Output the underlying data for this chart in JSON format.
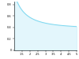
{
  "x_min": 1.0,
  "x_max": 5.0,
  "y_min": 0.0,
  "y_max": 0.85,
  "xticks": [
    1.5,
    2.0,
    2.5,
    3.0,
    3.5,
    4.0,
    4.5,
    5.0
  ],
  "yticks": [
    0.0,
    0.2,
    0.4,
    0.6,
    0.8
  ],
  "xtick_labels": [
    "1.5",
    "2",
    "2.5",
    "3",
    "3.5",
    "4",
    "4.5",
    "5"
  ],
  "ytick_labels": [
    "0",
    "0.2",
    "0.4",
    "0.6",
    "0.8"
  ],
  "line_color": "#7dd8f0",
  "fill_color": "#c8eefa",
  "fill_alpha": 0.5,
  "background_color": "#ffffff",
  "gamma": 1.4,
  "spine_linewidth": 0.4,
  "line_linewidth": 0.7
}
